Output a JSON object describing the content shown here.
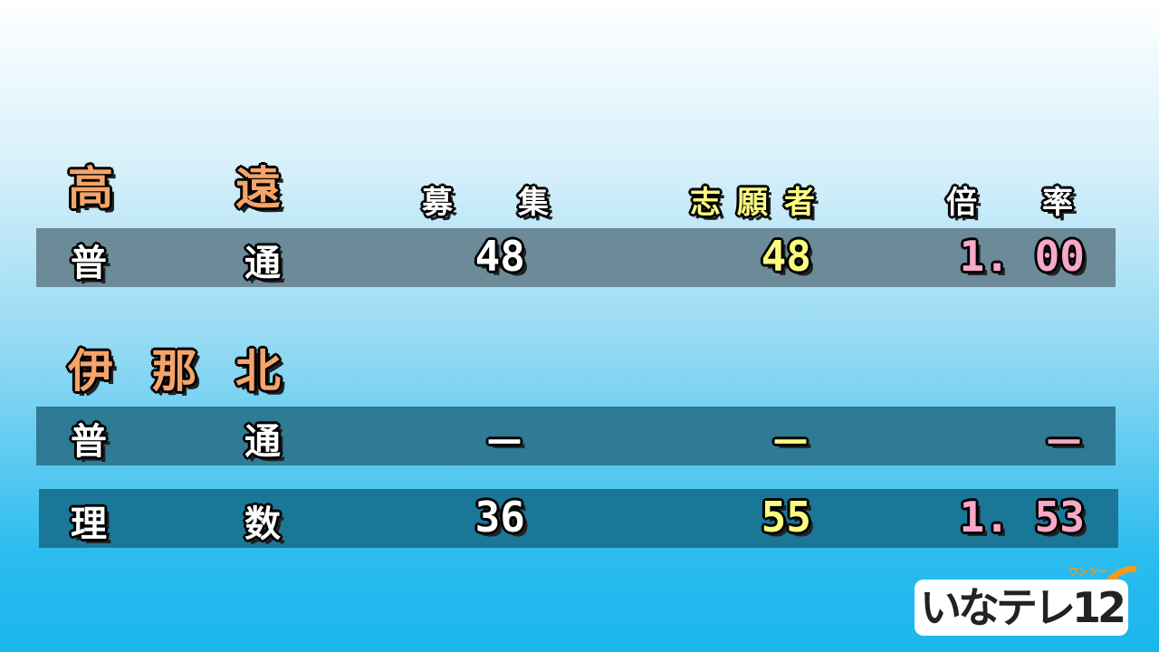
{
  "headers": {
    "recruit": "募集",
    "applicants": "志願者",
    "ratio": "倍率"
  },
  "schools": [
    {
      "name": "高遠",
      "rows": [
        {
          "course": "普通",
          "recruit": "48",
          "applicants": "48",
          "ratio": "1. 00"
        }
      ]
    },
    {
      "name": "伊那北",
      "rows": [
        {
          "course": "普通",
          "recruit": "－",
          "applicants": "－",
          "ratio": "－"
        },
        {
          "course": "理数",
          "recruit": "36",
          "applicants": "55",
          "ratio": "1. 53"
        }
      ]
    }
  ],
  "logo": {
    "text": "いなテレ12",
    "subtext": "ワンツー"
  },
  "colors": {
    "school": "#f5a46a",
    "recruit": "#ffffff",
    "applicants": "#fafa80",
    "ratio": "#f8a8c8"
  }
}
